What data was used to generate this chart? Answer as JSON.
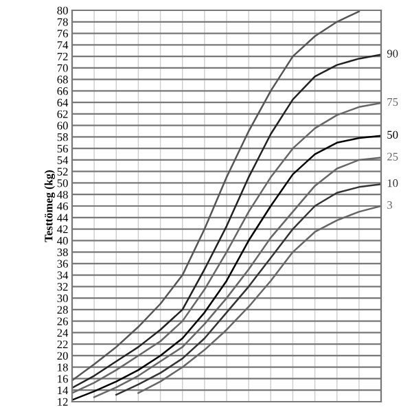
{
  "chart_data": {
    "type": "line",
    "ylabel": "Testtömeg (kg)",
    "categories": [
      null,
      null,
      null,
      null,
      null,
      null,
      null,
      null,
      null,
      null,
      null,
      null,
      null,
      null,
      null
    ],
    "series": [
      {
        "color": "#555555",
        "values": [
          15.7,
          18.5,
          21.5,
          25,
          29,
          34,
          42,
          51,
          59,
          66,
          72,
          75.5,
          78,
          79.8,
          null
        ]
      },
      {
        "name": "90",
        "color": "#222222",
        "values": [
          14.4,
          16.5,
          19,
          21.5,
          24.5,
          28,
          35,
          42.5,
          51,
          58.5,
          64.5,
          68.5,
          70.5,
          71.6,
          72.3
        ]
      },
      {
        "name": "75",
        "color": "#666666",
        "values": [
          13.5,
          15.3,
          17.5,
          20,
          22.5,
          26,
          31.5,
          38,
          45,
          51,
          56,
          59.5,
          61.8,
          63.2,
          63.9
        ]
      },
      {
        "name": "50",
        "color": "#000000",
        "values": [
          12.3,
          13.8,
          15.5,
          17.5,
          20,
          23,
          27.5,
          33,
          40,
          46,
          51.5,
          55,
          57,
          57.8,
          58.2
        ]
      },
      {
        "name": "25",
        "color": "#666666",
        "values": [
          null,
          12.8,
          14.5,
          16.5,
          19,
          21.5,
          25.5,
          30,
          35,
          40.5,
          45,
          49.5,
          52.5,
          54,
          54.4
        ]
      },
      {
        "name": "10",
        "color": "#333333",
        "values": [
          null,
          null,
          13.2,
          15,
          17,
          19.5,
          23,
          27.5,
          32,
          37,
          42,
          46,
          48.3,
          49.3,
          49.8
        ]
      },
      {
        "name": "3",
        "color": "#666666",
        "values": [
          null,
          null,
          null,
          13.5,
          15.5,
          18,
          21,
          24.5,
          28.5,
          33,
          38,
          41.5,
          43.5,
          45,
          46
        ]
      }
    ],
    "ylim": [
      12,
      80
    ],
    "yticks": [
      12,
      14,
      16,
      18,
      20,
      22,
      24,
      26,
      28,
      30,
      32,
      34,
      36,
      38,
      40,
      42,
      44,
      46,
      48,
      50,
      52,
      54,
      56,
      58,
      60,
      62,
      64,
      66,
      68,
      70,
      72,
      74,
      76,
      78,
      80
    ],
    "grid": true,
    "tick_labels": "y",
    "line_style": "solid",
    "marker": "none"
  }
}
